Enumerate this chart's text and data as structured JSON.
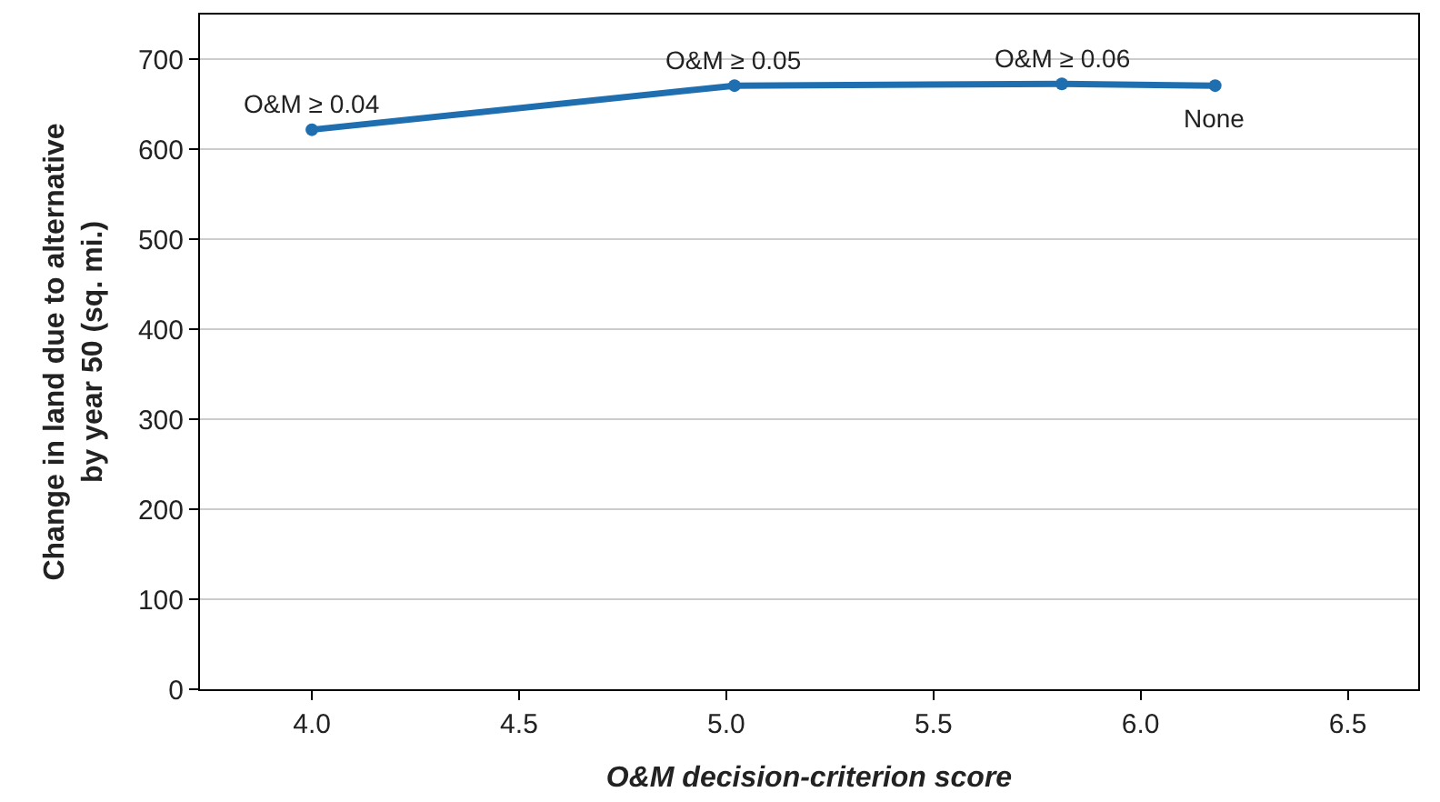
{
  "chart_data": {
    "type": "line",
    "xlabel": "O&M decision-criterion score",
    "ylabel": "Change in land due to alternative\nby year 50 (sq. mi.)",
    "x": [
      4.0,
      5.02,
      5.81,
      6.18
    ],
    "series": [
      {
        "color": "#1f6fb0",
        "values": [
          622,
          671,
          673,
          671
        ]
      }
    ],
    "xlim": [
      3.73,
      6.67
    ],
    "xticks": [
      {
        "value": 4.0,
        "label": "4.0"
      },
      {
        "value": 4.5,
        "label": "4.5"
      },
      {
        "value": 5.0,
        "label": "5.0"
      },
      {
        "value": 5.5,
        "label": "5.5"
      },
      {
        "value": 6.0,
        "label": "6.0"
      },
      {
        "value": 6.5,
        "label": "6.5"
      }
    ],
    "ylim": [
      0,
      750
    ],
    "yticks": [
      0,
      100,
      200,
      300,
      400,
      500,
      600,
      700
    ],
    "annotations": [
      {
        "text": "O&M ≥ 0.04",
        "x": 4.0,
        "y": 622
      },
      {
        "text": "O&M ≥ 0.05",
        "x": 5.02,
        "y": 671
      },
      {
        "text": "O&M ≥ 0.06",
        "x": 5.81,
        "y": 673
      },
      {
        "text": "None",
        "x": 6.18,
        "y": 671
      }
    ],
    "grid": "y",
    "marker": "circle",
    "line_style": "solid",
    "legend": false
  }
}
